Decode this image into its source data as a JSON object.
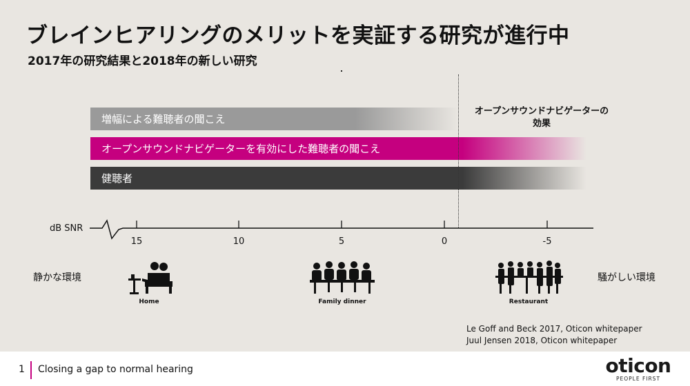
{
  "title": "ブレインヒアリングのメリットを実証する研究が進行中",
  "subtitle": "2017年の研究結果と2018年の新しい研究",
  "bars": {
    "amplification": "増幅による難聴者の聞こえ",
    "opensound": "オープンサウンドナビゲーターを有効にした難聴者の聞こえ",
    "normal": "健聴者"
  },
  "effect_label": "オープンサウンドナビゲーターの\n効果",
  "axis": {
    "label": "dB SNR",
    "ticks": [
      "15",
      "10",
      "5",
      "0",
      "-5"
    ]
  },
  "environment": {
    "quiet": "静かな環境",
    "noisy": "騒がしい環境"
  },
  "scenes": {
    "home": "Home",
    "dinner": "Family dinner",
    "restaurant": "Restaurant"
  },
  "references": [
    "Le Goff and Beck 2017, Oticon whitepaper",
    "Juul Jensen 2018, Oticon whitepaper"
  ],
  "footer": {
    "page_number": "1",
    "text": "Closing a gap to normal hearing"
  },
  "logo": {
    "name": "oticon",
    "tagline": "PEOPLE FIRST"
  },
  "colors": {
    "accent": "#c5007f",
    "gray_bar": "#9a9a9a",
    "dark_bar": "#3b3b3b",
    "background": "#e9e6e1"
  }
}
